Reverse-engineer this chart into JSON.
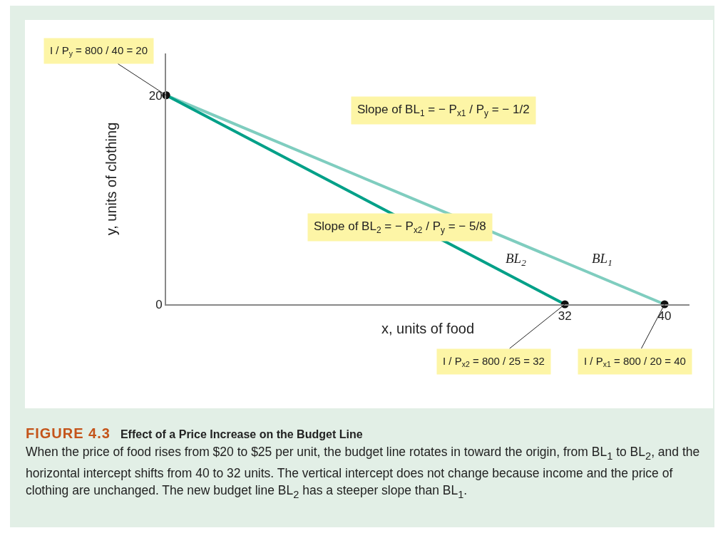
{
  "chart_data": {
    "type": "line",
    "title": "FIGURE 4.3",
    "subtitle": "Effect of a Price Increase on the Budget Line",
    "xlabel": "x, units of food",
    "ylabel": "y, units of clothing",
    "series": [
      {
        "name": "BL$_{1}$",
        "color": "#7fcdbf",
        "x": [
          0,
          40
        ],
        "values": [
          20,
          0
        ]
      },
      {
        "name": "BL$_{2}$",
        "color": "#00a088",
        "x": [
          0,
          32
        ],
        "values": [
          20,
          0
        ]
      }
    ],
    "xlim": [
      0,
      42
    ],
    "xticks": [
      32,
      40
    ],
    "ylim": [
      0,
      24
    ],
    "yticks": [
      0,
      20
    ],
    "grid": false,
    "legend": false,
    "marker": "circle",
    "line_style": "solid",
    "annotations": [
      {
        "text": "I / P$_{y}$ = 800 / 40 = 20",
        "x": 0,
        "y": 20
      },
      "Slope of BL$_{1}$ = − P$_{x1}$ / P$_{y}$ = − 1/2",
      "Slope of BL$_{2}$ = − P$_{x2}$ / P$_{y}$ = − 5/8",
      {
        "text": "I / P$_{x2}$ = 800 / 25 = 32",
        "x": 32,
        "y": 0
      },
      {
        "text": "I / P$_{x1}$ = 800 / 20 = 40",
        "x": 40,
        "y": 0
      },
      "When the price of food rises from $20 to $25 per unit, the budget line rotates in toward the origin, from BL$_{1}$ to BL$_{2}$, and the horizontal intercept shifts from 40 to 32 units. The vertical intercept does not change because income and the price of clothing are unchanged. The new budget line BL$_{2}$ has a steeper slope than BL$_{1}$."
    ]
  }
}
